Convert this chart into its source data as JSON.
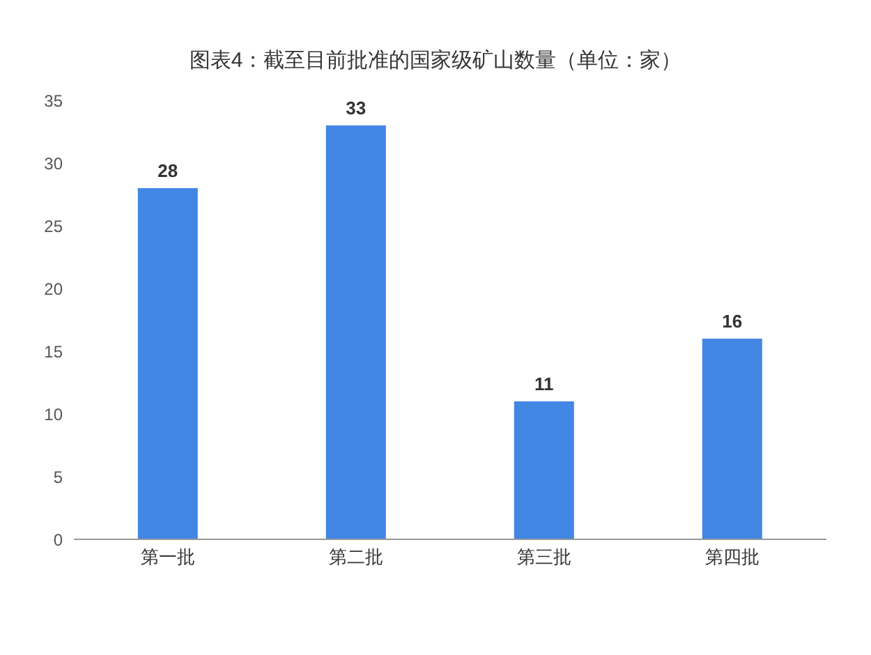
{
  "chart_data": {
    "type": "bar",
    "title": "图表4：截至目前批准的国家级矿山数量（单位：家）",
    "categories": [
      "第一批",
      "第二批",
      "第三批",
      "第四批"
    ],
    "values": [
      28,
      33,
      11,
      16
    ],
    "color": "#4287e3",
    "ylim": [
      0,
      35
    ],
    "yticks": [
      0,
      5,
      10,
      15,
      20,
      25,
      30,
      35
    ],
    "grid": false,
    "data_labels": true
  }
}
